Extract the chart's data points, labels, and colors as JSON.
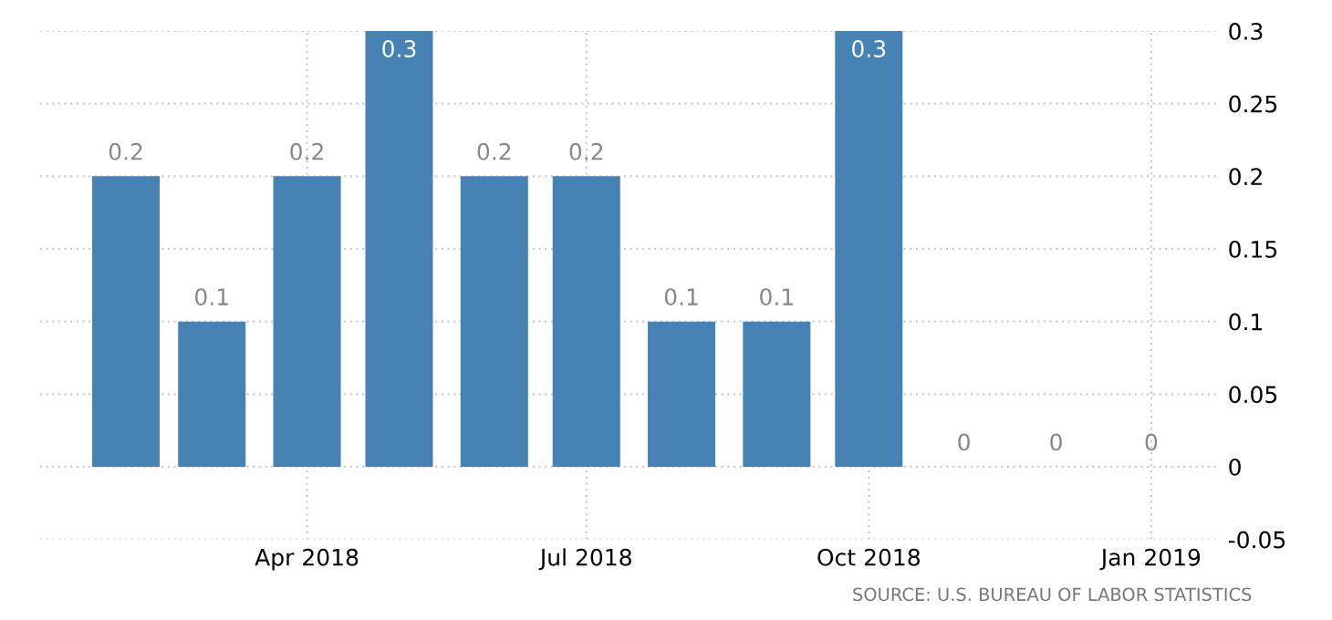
{
  "chart_data": {
    "type": "bar",
    "x": [
      "2018-02-01",
      "2018-03-01",
      "2018-04-01",
      "2018-05-01",
      "2018-06-01",
      "2018-07-01",
      "2018-08-01",
      "2018-09-01",
      "2018-10-01",
      "2018-11-01",
      "2018-12-01",
      "2019-01-01"
    ],
    "values": [
      0.2,
      0.1,
      0.2,
      0.3,
      0.2,
      0.2,
      0.1,
      0.1,
      0.3,
      0,
      0,
      0
    ],
    "color": "#4682b4",
    "data_labels": true,
    "xlim": [
      "2018-01-04",
      "2019-01-23"
    ],
    "xticks": [
      {
        "value": "2018-04-01",
        "label": "Apr 2018"
      },
      {
        "value": "2018-07-01",
        "label": "Jul 2018"
      },
      {
        "value": "2018-10-01",
        "label": "Oct 2018"
      },
      {
        "value": "2019-01-01",
        "label": "Jan 2019"
      }
    ],
    "ylim": [
      -0.05,
      0.3
    ],
    "yticks": [
      -0.05,
      0,
      0.05,
      0.1,
      0.15,
      0.2,
      0.25,
      0.3
    ],
    "grid": true,
    "annotations": [
      "SOURCE: U.S. BUREAU OF LABOR STATISTICS"
    ]
  }
}
